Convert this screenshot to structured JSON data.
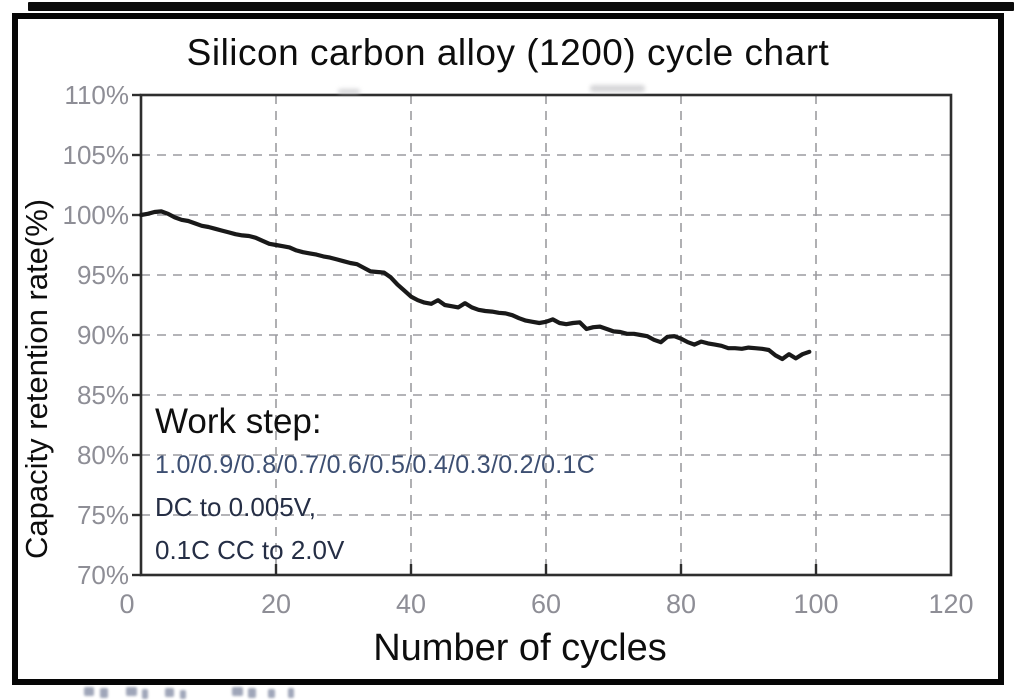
{
  "chart_data": {
    "type": "line",
    "title": "Silicon carbon alloy (1200) cycle chart",
    "xlabel": "Number of cycles",
    "ylabel": "Capacity retention rate(%)",
    "xlim": [
      0,
      120
    ],
    "ylim": [
      70,
      110
    ],
    "x_ticks": [
      0,
      20,
      40,
      60,
      80,
      100,
      120
    ],
    "x_tick_labels": [
      "0",
      "20",
      "40",
      "60",
      "80",
      "100",
      "120"
    ],
    "y_ticks": [
      70,
      75,
      80,
      85,
      90,
      95,
      100,
      105,
      110
    ],
    "y_tick_labels": [
      "70%",
      "75%",
      "80%",
      "85%",
      "90%",
      "95%",
      "100%",
      "105%",
      "110%"
    ],
    "grid": "dashed",
    "legend": "none",
    "line_color": "#191919",
    "grid_color": "#9c9ca0",
    "axis_color": "#2e2e2e",
    "tick_label_color": "#8e8e96",
    "series": [
      {
        "name": "capacity-retention",
        "x": [
          0,
          1,
          2,
          3,
          4,
          5,
          6,
          7,
          8,
          9,
          10,
          11,
          12,
          13,
          14,
          15,
          16,
          17,
          18,
          19,
          20,
          21,
          22,
          23,
          24,
          25,
          26,
          27,
          28,
          29,
          30,
          31,
          32,
          33,
          34,
          35,
          36,
          37,
          38,
          39,
          40,
          41,
          42,
          43,
          44,
          45,
          46,
          47,
          48,
          49,
          50,
          51,
          52,
          53,
          54,
          55,
          56,
          57,
          58,
          59,
          60,
          61,
          62,
          63,
          64,
          65,
          66,
          67,
          68,
          69,
          70,
          71,
          72,
          73,
          74,
          75,
          76,
          77,
          78,
          79,
          80,
          81,
          82,
          83,
          84,
          85,
          86,
          87,
          88,
          89,
          90,
          91,
          92,
          93,
          94,
          95,
          96,
          97,
          98,
          99
        ],
        "y": [
          100.0,
          100.1,
          100.25,
          100.3,
          100.1,
          99.8,
          99.6,
          99.5,
          99.3,
          99.1,
          99.0,
          98.85,
          98.7,
          98.55,
          98.4,
          98.3,
          98.25,
          98.1,
          97.85,
          97.6,
          97.5,
          97.4,
          97.3,
          97.05,
          96.9,
          96.8,
          96.7,
          96.55,
          96.45,
          96.3,
          96.15,
          96.0,
          95.9,
          95.6,
          95.3,
          95.25,
          95.2,
          94.8,
          94.2,
          93.7,
          93.2,
          92.9,
          92.7,
          92.6,
          92.9,
          92.5,
          92.4,
          92.3,
          92.65,
          92.3,
          92.1,
          92.0,
          91.95,
          91.85,
          91.8,
          91.65,
          91.4,
          91.2,
          91.1,
          91.0,
          91.1,
          91.3,
          91.0,
          90.9,
          91.0,
          91.05,
          90.5,
          90.65,
          90.7,
          90.5,
          90.3,
          90.25,
          90.1,
          90.1,
          90.0,
          89.9,
          89.6,
          89.4,
          89.85,
          89.9,
          89.7,
          89.4,
          89.2,
          89.45,
          89.3,
          89.2,
          89.1,
          88.9,
          88.9,
          88.85,
          88.95,
          88.9,
          88.85,
          88.75,
          88.3,
          88.0,
          88.4,
          88.05,
          88.4,
          88.6
        ]
      }
    ],
    "annotation": {
      "heading": "Work step:",
      "lines": [
        "1.0/0.9/0.8/0.7/0.6/0.5/0.4/0.3/0.2/0.1C",
        "DC to 0.005V,",
        "0.1C CC to 2.0V"
      ]
    }
  }
}
